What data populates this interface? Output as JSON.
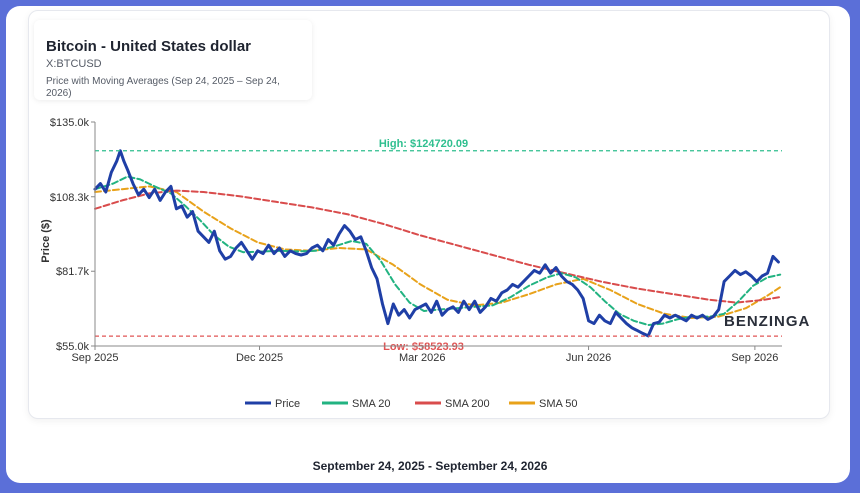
{
  "chart_data": {
    "type": "line",
    "title": "Bitcoin - United States dollar",
    "ticker": "X:BTCUSD",
    "subtitle": "Price with Moving Averages (Sep 24, 2025 – Sep 24, 2026)",
    "ylabel": "Price ($)",
    "xlabel": "",
    "ylim": [
      55000,
      135000
    ],
    "xlim_days": [
      0,
      380
    ],
    "yticks": [
      {
        "value": 135000,
        "label": "$135.0k"
      },
      {
        "value": 108300,
        "label": "$108.3k"
      },
      {
        "value": 81700,
        "label": "$81.7k"
      },
      {
        "value": 55000,
        "label": "$55.0k"
      }
    ],
    "xticks": [
      {
        "day": 0,
        "label": "Sep 2025"
      },
      {
        "day": 91,
        "label": "Dec 2025"
      },
      {
        "day": 181,
        "label": "Mar 2026"
      },
      {
        "day": 273,
        "label": "Jun 2026"
      },
      {
        "day": 365,
        "label": "Sep 2026"
      }
    ],
    "high": {
      "value": 124720.09,
      "label": "High: $124720.09",
      "color": "#2fbf8f"
    },
    "low": {
      "value": 58523.93,
      "label": "Low: $58523.93",
      "color": "#e05555"
    },
    "legend_position": "bottom",
    "series": [
      {
        "name": "Price",
        "color": "#1f3fa6",
        "points": [
          [
            0,
            111000
          ],
          [
            3,
            113000
          ],
          [
            6,
            110000
          ],
          [
            9,
            117000
          ],
          [
            12,
            121000
          ],
          [
            14,
            124700
          ],
          [
            16,
            121000
          ],
          [
            18,
            118000
          ],
          [
            21,
            113000
          ],
          [
            24,
            109000
          ],
          [
            27,
            111000
          ],
          [
            30,
            108000
          ],
          [
            33,
            111000
          ],
          [
            36,
            107000
          ],
          [
            39,
            110000
          ],
          [
            42,
            112000
          ],
          [
            45,
            104000
          ],
          [
            48,
            105000
          ],
          [
            51,
            101000
          ],
          [
            54,
            103000
          ],
          [
            57,
            96000
          ],
          [
            60,
            94000
          ],
          [
            63,
            92000
          ],
          [
            66,
            96000
          ],
          [
            69,
            89000
          ],
          [
            72,
            86000
          ],
          [
            75,
            87000
          ],
          [
            78,
            90000
          ],
          [
            81,
            92000
          ],
          [
            84,
            89000
          ],
          [
            87,
            86000
          ],
          [
            90,
            89000
          ],
          [
            93,
            88000
          ],
          [
            96,
            91000
          ],
          [
            99,
            88000
          ],
          [
            102,
            90000
          ],
          [
            105,
            87000
          ],
          [
            108,
            89000
          ],
          [
            111,
            88000
          ],
          [
            114,
            87500
          ],
          [
            117,
            88000
          ],
          [
            120,
            90000
          ],
          [
            123,
            91000
          ],
          [
            126,
            89000
          ],
          [
            129,
            93000
          ],
          [
            132,
            91000
          ],
          [
            135,
            95000
          ],
          [
            138,
            98000
          ],
          [
            141,
            96000
          ],
          [
            144,
            93000
          ],
          [
            147,
            94000
          ],
          [
            150,
            89000
          ],
          [
            153,
            83000
          ],
          [
            156,
            79000
          ],
          [
            159,
            70000
          ],
          [
            162,
            63000
          ],
          [
            165,
            70000
          ],
          [
            168,
            66000
          ],
          [
            171,
            68000
          ],
          [
            174,
            65000
          ],
          [
            177,
            68000
          ],
          [
            180,
            69000
          ],
          [
            183,
            70000
          ],
          [
            186,
            67000
          ],
          [
            189,
            71000
          ],
          [
            192,
            66000
          ],
          [
            195,
            68000
          ],
          [
            198,
            69000
          ],
          [
            201,
            67000
          ],
          [
            204,
            71000
          ],
          [
            207,
            68000
          ],
          [
            210,
            71000
          ],
          [
            213,
            67000
          ],
          [
            216,
            69000
          ],
          [
            219,
            72000
          ],
          [
            222,
            71000
          ],
          [
            225,
            74000
          ],
          [
            228,
            75000
          ],
          [
            231,
            77000
          ],
          [
            234,
            76000
          ],
          [
            237,
            78000
          ],
          [
            240,
            80000
          ],
          [
            243,
            82000
          ],
          [
            246,
            81000
          ],
          [
            249,
            84000
          ],
          [
            252,
            81000
          ],
          [
            255,
            83000
          ],
          [
            258,
            80000
          ],
          [
            261,
            78000
          ],
          [
            264,
            77000
          ],
          [
            267,
            75000
          ],
          [
            270,
            72000
          ],
          [
            273,
            64000
          ],
          [
            276,
            63000
          ],
          [
            279,
            66000
          ],
          [
            282,
            64000
          ],
          [
            285,
            63000
          ],
          [
            288,
            67000
          ],
          [
            291,
            65000
          ],
          [
            294,
            63000
          ],
          [
            297,
            61500
          ],
          [
            300,
            60500
          ],
          [
            303,
            59500
          ],
          [
            306,
            58600
          ],
          [
            309,
            63000
          ],
          [
            312,
            63500
          ],
          [
            315,
            66000
          ],
          [
            318,
            65000
          ],
          [
            321,
            66000
          ],
          [
            324,
            65000
          ],
          [
            327,
            64000
          ],
          [
            330,
            66000
          ],
          [
            333,
            65000
          ],
          [
            336,
            66000
          ],
          [
            339,
            64500
          ],
          [
            342,
            65500
          ],
          [
            345,
            68000
          ],
          [
            348,
            78000
          ],
          [
            351,
            80000
          ],
          [
            354,
            82000
          ],
          [
            357,
            80500
          ],
          [
            360,
            81500
          ],
          [
            363,
            80000
          ],
          [
            366,
            78000
          ],
          [
            369,
            80000
          ],
          [
            372,
            81000
          ],
          [
            375,
            87000
          ],
          [
            378,
            85000
          ]
        ]
      },
      {
        "name": "SMA 20",
        "color": "#22b381",
        "points": [
          [
            0,
            111000
          ],
          [
            10,
            113000
          ],
          [
            18,
            115500
          ],
          [
            25,
            114500
          ],
          [
            33,
            112000
          ],
          [
            42,
            109500
          ],
          [
            50,
            105000
          ],
          [
            58,
            100000
          ],
          [
            66,
            94500
          ],
          [
            74,
            90500
          ],
          [
            82,
            88500
          ],
          [
            92,
            88700
          ],
          [
            102,
            89000
          ],
          [
            112,
            88800
          ],
          [
            122,
            89000
          ],
          [
            132,
            90500
          ],
          [
            142,
            92500
          ],
          [
            150,
            91500
          ],
          [
            158,
            85500
          ],
          [
            166,
            77000
          ],
          [
            174,
            70500
          ],
          [
            182,
            67500
          ],
          [
            190,
            68000
          ],
          [
            200,
            68500
          ],
          [
            210,
            69000
          ],
          [
            220,
            69500
          ],
          [
            230,
            72500
          ],
          [
            240,
            76500
          ],
          [
            250,
            79500
          ],
          [
            258,
            81000
          ],
          [
            266,
            79500
          ],
          [
            274,
            76000
          ],
          [
            282,
            71000
          ],
          [
            290,
            66500
          ],
          [
            298,
            64000
          ],
          [
            306,
            62500
          ],
          [
            314,
            63000
          ],
          [
            322,
            64500
          ],
          [
            330,
            65500
          ],
          [
            340,
            65500
          ],
          [
            348,
            66500
          ],
          [
            356,
            71000
          ],
          [
            364,
            76500
          ],
          [
            372,
            79500
          ],
          [
            379,
            80500
          ]
        ]
      },
      {
        "name": "SMA 200",
        "color": "#d94c4c",
        "points": [
          [
            0,
            104000
          ],
          [
            15,
            107000
          ],
          [
            30,
            109500
          ],
          [
            45,
            110500
          ],
          [
            60,
            110000
          ],
          [
            80,
            108500
          ],
          [
            100,
            106500
          ],
          [
            120,
            104500
          ],
          [
            140,
            102000
          ],
          [
            160,
            98500
          ],
          [
            180,
            94500
          ],
          [
            200,
            91000
          ],
          [
            220,
            87500
          ],
          [
            240,
            84000
          ],
          [
            260,
            81000
          ],
          [
            280,
            78000
          ],
          [
            300,
            75500
          ],
          [
            320,
            73500
          ],
          [
            340,
            71500
          ],
          [
            355,
            70500
          ],
          [
            370,
            71500
          ],
          [
            379,
            72500
          ]
        ]
      },
      {
        "name": "SMA 50",
        "color": "#e8a21a",
        "points": [
          [
            0,
            110000
          ],
          [
            15,
            111000
          ],
          [
            30,
            112000
          ],
          [
            45,
            110000
          ],
          [
            60,
            103000
          ],
          [
            75,
            97000
          ],
          [
            90,
            92000
          ],
          [
            105,
            89500
          ],
          [
            120,
            89000
          ],
          [
            135,
            90000
          ],
          [
            150,
            89500
          ],
          [
            165,
            84000
          ],
          [
            180,
            77000
          ],
          [
            195,
            71500
          ],
          [
            210,
            69500
          ],
          [
            225,
            70500
          ],
          [
            240,
            73500
          ],
          [
            255,
            77000
          ],
          [
            270,
            79000
          ],
          [
            285,
            75000
          ],
          [
            300,
            70000
          ],
          [
            315,
            66500
          ],
          [
            330,
            65000
          ],
          [
            345,
            65500
          ],
          [
            360,
            68500
          ],
          [
            372,
            73000
          ],
          [
            379,
            76000
          ]
        ]
      }
    ]
  },
  "watermark": "BENZINGA",
  "footer": "September 24, 2025 - September 24, 2026"
}
